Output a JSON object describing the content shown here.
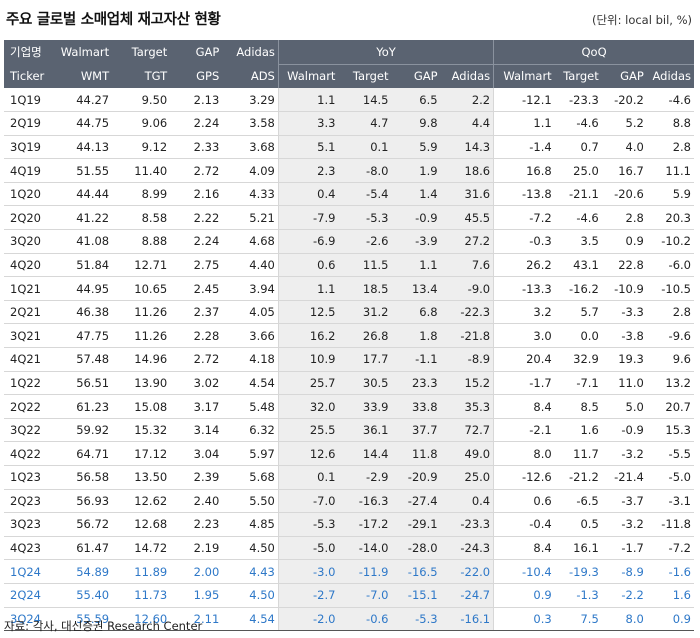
{
  "title": "주요 글로벌 소매업체 재고자산 현황",
  "unit": "(단위: local bil, %)",
  "header": {
    "row1": [
      "기업명",
      "Walmart",
      "Target",
      "GAP",
      "Adidas"
    ],
    "group_yoy": "YoY",
    "group_qoq": "QoQ",
    "row2": [
      "Ticker",
      "WMT",
      "TGT",
      "GPS",
      "ADS",
      "Walmart",
      "Target",
      "GAP",
      "Adidas",
      "Walmart",
      "Target",
      "GAP",
      "Adidas"
    ]
  },
  "rows": [
    {
      "q": "1Q19",
      "v": [
        "44.27",
        "9.50",
        "2.13",
        "3.29",
        "1.1",
        "14.5",
        "6.5",
        "2.2",
        "-12.1",
        "-23.3",
        "-20.2",
        "-4.6"
      ]
    },
    {
      "q": "2Q19",
      "v": [
        "44.75",
        "9.06",
        "2.24",
        "3.58",
        "3.3",
        "4.7",
        "9.8",
        "4.4",
        "1.1",
        "-4.6",
        "5.2",
        "8.8"
      ]
    },
    {
      "q": "3Q19",
      "v": [
        "44.13",
        "9.12",
        "2.33",
        "3.68",
        "5.1",
        "0.1",
        "5.9",
        "14.3",
        "-1.4",
        "0.7",
        "4.0",
        "2.8"
      ]
    },
    {
      "q": "4Q19",
      "v": [
        "51.55",
        "11.40",
        "2.72",
        "4.09",
        "2.3",
        "-8.0",
        "1.9",
        "18.6",
        "16.8",
        "25.0",
        "16.7",
        "11.1"
      ]
    },
    {
      "q": "1Q20",
      "v": [
        "44.44",
        "8.99",
        "2.16",
        "4.33",
        "0.4",
        "-5.4",
        "1.4",
        "31.6",
        "-13.8",
        "-21.1",
        "-20.6",
        "5.9"
      ]
    },
    {
      "q": "2Q20",
      "v": [
        "41.22",
        "8.58",
        "2.22",
        "5.21",
        "-7.9",
        "-5.3",
        "-0.9",
        "45.5",
        "-7.2",
        "-4.6",
        "2.8",
        "20.3"
      ]
    },
    {
      "q": "3Q20",
      "v": [
        "41.08",
        "8.88",
        "2.24",
        "4.68",
        "-6.9",
        "-2.6",
        "-3.9",
        "27.2",
        "-0.3",
        "3.5",
        "0.9",
        "-10.2"
      ]
    },
    {
      "q": "4Q20",
      "v": [
        "51.84",
        "12.71",
        "2.75",
        "4.40",
        "0.6",
        "11.5",
        "1.1",
        "7.6",
        "26.2",
        "43.1",
        "22.8",
        "-6.0"
      ]
    },
    {
      "q": "1Q21",
      "v": [
        "44.95",
        "10.65",
        "2.45",
        "3.94",
        "1.1",
        "18.5",
        "13.4",
        "-9.0",
        "-13.3",
        "-16.2",
        "-10.9",
        "-10.5"
      ]
    },
    {
      "q": "2Q21",
      "v": [
        "46.38",
        "11.26",
        "2.37",
        "4.05",
        "12.5",
        "31.2",
        "6.8",
        "-22.3",
        "3.2",
        "5.7",
        "-3.3",
        "2.8"
      ]
    },
    {
      "q": "3Q21",
      "v": [
        "47.75",
        "11.26",
        "2.28",
        "3.66",
        "16.2",
        "26.8",
        "1.8",
        "-21.8",
        "3.0",
        "0.0",
        "-3.8",
        "-9.6"
      ]
    },
    {
      "q": "4Q21",
      "v": [
        "57.48",
        "14.96",
        "2.72",
        "4.18",
        "10.9",
        "17.7",
        "-1.1",
        "-8.9",
        "20.4",
        "32.9",
        "19.3",
        "9.6"
      ]
    },
    {
      "q": "1Q22",
      "v": [
        "56.51",
        "13.90",
        "3.02",
        "4.54",
        "25.7",
        "30.5",
        "23.3",
        "15.2",
        "-1.7",
        "-7.1",
        "11.0",
        "13.2"
      ]
    },
    {
      "q": "2Q22",
      "v": [
        "61.23",
        "15.08",
        "3.17",
        "5.48",
        "32.0",
        "33.9",
        "33.8",
        "35.3",
        "8.4",
        "8.5",
        "5.0",
        "20.7"
      ]
    },
    {
      "q": "3Q22",
      "v": [
        "59.92",
        "15.32",
        "3.14",
        "6.32",
        "25.5",
        "36.1",
        "37.7",
        "72.7",
        "-2.1",
        "1.6",
        "-0.9",
        "15.3"
      ]
    },
    {
      "q": "4Q22",
      "v": [
        "64.71",
        "17.12",
        "3.04",
        "5.97",
        "12.6",
        "14.4",
        "11.8",
        "49.0",
        "8.0",
        "11.7",
        "-3.2",
        "-5.5"
      ]
    },
    {
      "q": "1Q23",
      "v": [
        "56.58",
        "13.50",
        "2.39",
        "5.68",
        "0.1",
        "-2.9",
        "-20.9",
        "25.0",
        "-12.6",
        "-21.2",
        "-21.4",
        "-5.0"
      ]
    },
    {
      "q": "2Q23",
      "v": [
        "56.93",
        "12.62",
        "2.40",
        "5.50",
        "-7.0",
        "-16.3",
        "-27.4",
        "0.4",
        "0.6",
        "-6.5",
        "-3.7",
        "-3.1"
      ]
    },
    {
      "q": "3Q23",
      "v": [
        "56.72",
        "12.68",
        "2.23",
        "4.85",
        "-5.3",
        "-17.2",
        "-29.1",
        "-23.3",
        "-0.4",
        "0.5",
        "-3.2",
        "-11.8"
      ]
    },
    {
      "q": "4Q23",
      "v": [
        "61.47",
        "14.72",
        "2.19",
        "4.50",
        "-5.0",
        "-14.0",
        "-28.0",
        "-24.3",
        "8.4",
        "16.1",
        "-1.7",
        "-7.2"
      ]
    },
    {
      "q": "1Q24",
      "est": true,
      "v": [
        "54.89",
        "11.89",
        "2.00",
        "4.43",
        "-3.0",
        "-11.9",
        "-16.5",
        "-22.0",
        "-10.4",
        "-19.3",
        "-8.9",
        "-1.6"
      ]
    },
    {
      "q": "2Q24",
      "est": true,
      "v": [
        "55.40",
        "11.73",
        "1.95",
        "4.50",
        "-2.7",
        "-7.0",
        "-15.1",
        "-24.7",
        "0.9",
        "-1.3",
        "-2.2",
        "1.6"
      ]
    },
    {
      "q": "3Q24",
      "est": true,
      "v": [
        "55.59",
        "12.60",
        "2.11",
        "4.54",
        "-2.0",
        "-0.6",
        "-5.3",
        "-16.1",
        "0.3",
        "7.5",
        "8.0",
        "0.9"
      ]
    }
  ],
  "colors": {
    "header_bg": "#5a6371",
    "shaded_col_bg": "#eeeeee",
    "estimate_text": "#2e78c8"
  },
  "source": "자료: 각사, 대신증권 Research Center"
}
